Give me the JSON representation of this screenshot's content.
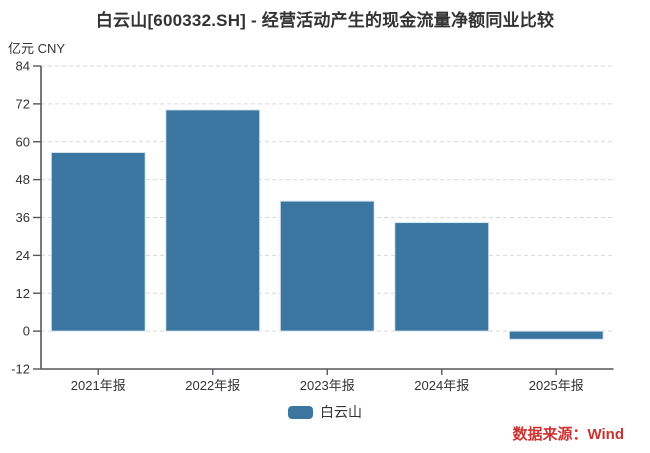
{
  "header": {
    "title": "白云山[600332.SH] - 经营活动产生的现金流量净额同业比较",
    "unit_label": "亿元 CNY"
  },
  "legend": {
    "items": [
      {
        "label": "白云山",
        "color": "#3b76a0"
      }
    ]
  },
  "footer": {
    "source_label": "数据来源：Wind",
    "source_color": "#cc3232"
  },
  "style": {
    "bar_color": "#3b76a0",
    "bar_border_color": "#d9e6f0",
    "axis_color": "#55575a",
    "grid_color": "#d9d9d9",
    "label_color": "#333333",
    "background": "#ffffff"
  },
  "chart_data": {
    "type": "bar",
    "title": "白云山[600332.SH] - 经营活动产生的现金流量净额同业比较",
    "unit": "亿元 CNY",
    "categories": [
      "2021年报",
      "2022年报",
      "2023年报",
      "2024年报",
      "2025年报"
    ],
    "series": [
      {
        "name": "白云山",
        "color": "#3b76a0",
        "values": [
          56.6,
          70.1,
          41.2,
          34.4,
          -2.6
        ]
      }
    ],
    "xlabel": "",
    "ylabel": "亿元 CNY",
    "ylim": [
      -12,
      84
    ],
    "yticks": [
      84,
      72,
      60,
      48,
      36,
      24,
      12,
      0,
      -12
    ],
    "grid": "horizontal-dashed",
    "legend_position": "bottom-center",
    "source": "数据来源：Wind"
  }
}
